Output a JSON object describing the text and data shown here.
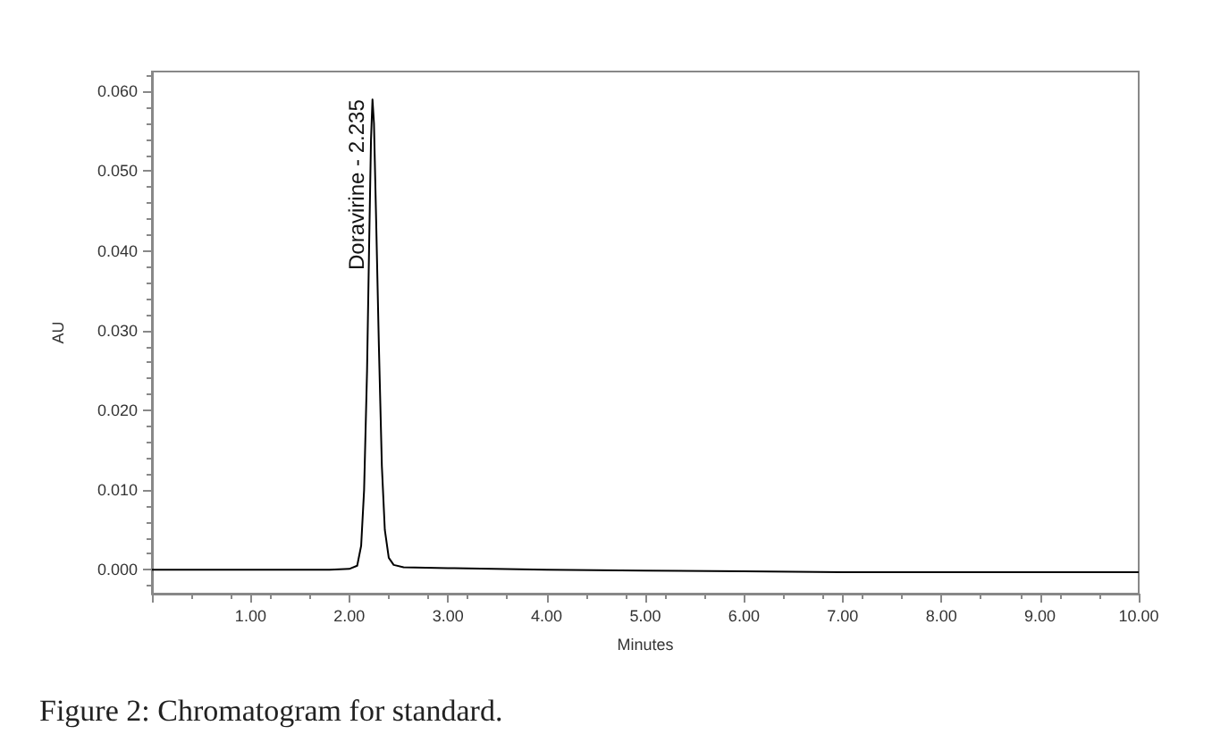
{
  "chart_data": {
    "type": "line",
    "xlabel": "Minutes",
    "ylabel": "AU",
    "x": [
      0,
      1,
      1.8,
      2.0,
      2.08,
      2.12,
      2.15,
      2.18,
      2.2,
      2.22,
      2.235,
      2.25,
      2.27,
      2.3,
      2.33,
      2.36,
      2.4,
      2.45,
      2.55,
      3,
      4,
      5,
      6,
      7,
      8,
      10
    ],
    "series": [
      {
        "color": "#000000",
        "values": [
          0,
          0,
          0,
          0.0001,
          0.0005,
          0.003,
          0.01,
          0.025,
          0.04,
          0.054,
          0.059,
          0.056,
          0.045,
          0.028,
          0.013,
          0.005,
          0.0015,
          0.0006,
          0.0003,
          0.0002,
          0,
          -0.0001,
          -0.0002,
          -0.0003,
          -0.0003,
          -0.0003
        ]
      }
    ],
    "xlim": [
      0,
      10
    ],
    "xticks": [
      {
        "value": 0,
        "label": null
      },
      {
        "value": 1,
        "label": "1.00"
      },
      {
        "value": 2,
        "label": "2.00"
      },
      {
        "value": 3,
        "label": "3.00"
      },
      {
        "value": 4,
        "label": "4.00"
      },
      {
        "value": 5,
        "label": "5.00"
      },
      {
        "value": 6,
        "label": "6.00"
      },
      {
        "value": 7,
        "label": "7.00"
      },
      {
        "value": 8,
        "label": "8.00"
      },
      {
        "value": 9,
        "label": "9.00"
      },
      {
        "value": 10,
        "label": "10.00"
      }
    ],
    "ylim": [
      -0.003,
      0.0625
    ],
    "yticks": [
      {
        "value": 0,
        "label": "0.000"
      },
      {
        "value": 0.01,
        "label": "0.010"
      },
      {
        "value": 0.02,
        "label": "0.020"
      },
      {
        "value": 0.03,
        "label": "0.030"
      },
      {
        "value": 0.04,
        "label": "0.040"
      },
      {
        "value": 0.05,
        "label": "0.050"
      },
      {
        "value": 0.06,
        "label": "0.060"
      }
    ],
    "grid": false,
    "marker": "none",
    "line_style": "solid",
    "annotations": [
      {
        "text": "Doravirine - 2.235",
        "x": 2.235,
        "y": 0.059
      },
      "Figure 2: Chromatogram for standard."
    ]
  }
}
